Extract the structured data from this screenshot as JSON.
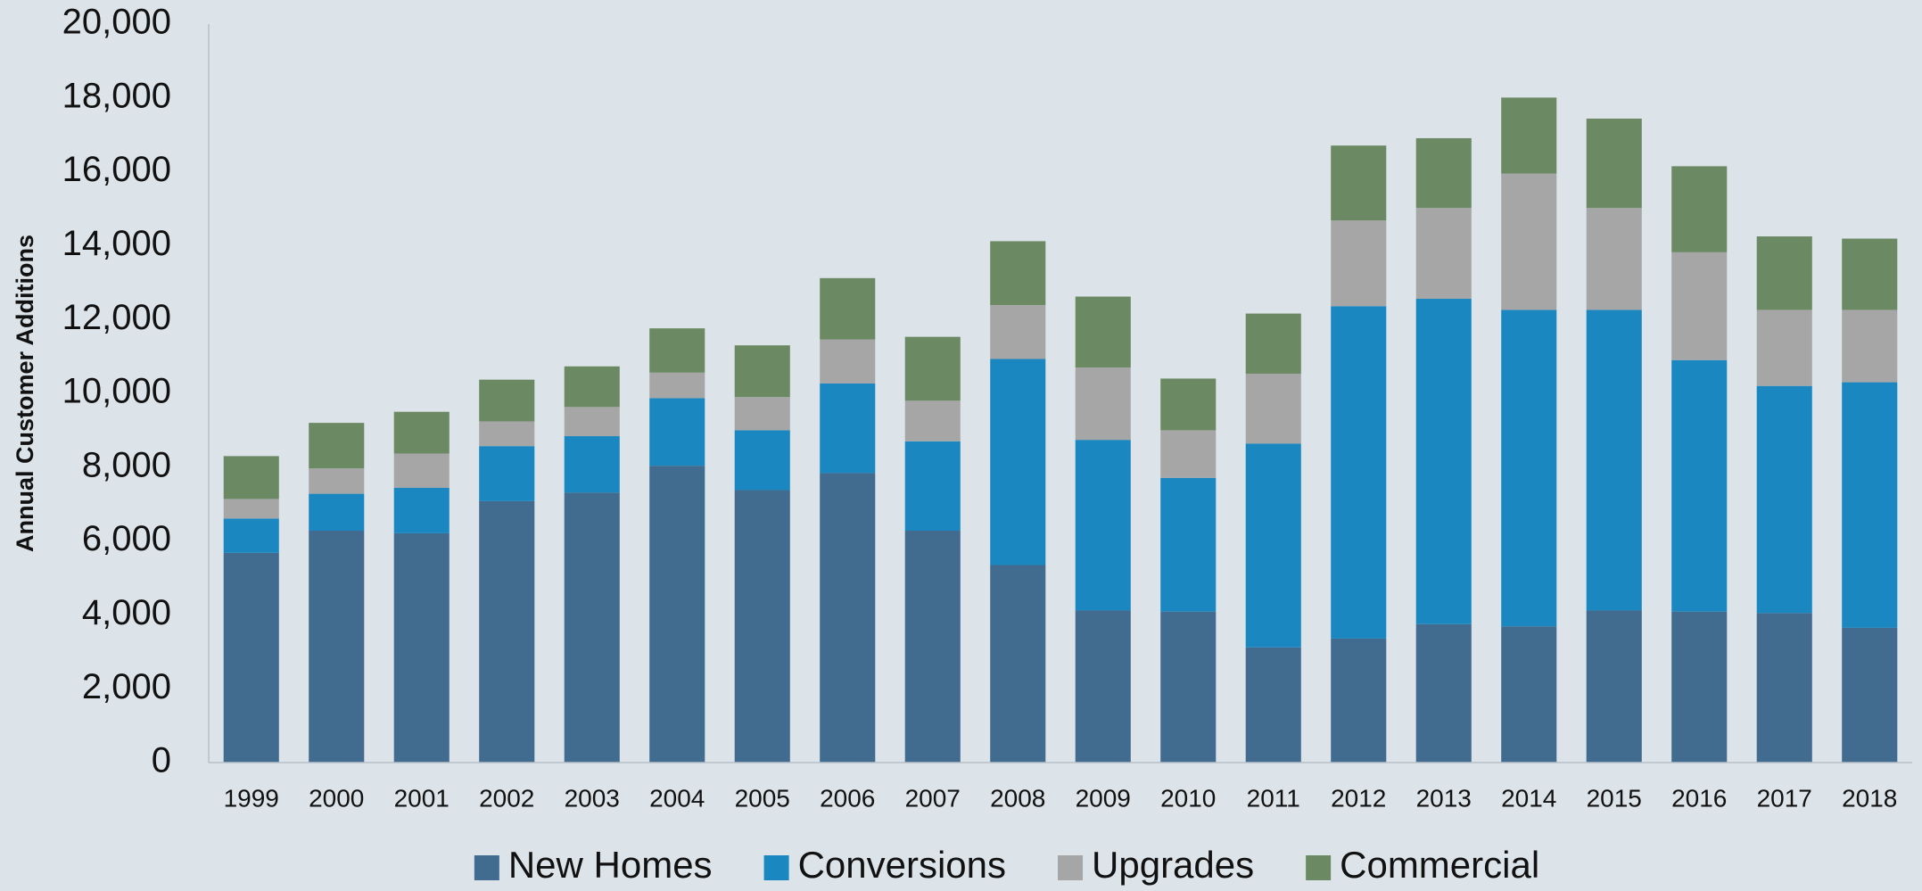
{
  "chart_data": {
    "type": "stacked_bar",
    "y_label": "Annual Customer Additions",
    "categories": [
      "1999",
      "2000",
      "2001",
      "2002",
      "2003",
      "2004",
      "2005",
      "2006",
      "2007",
      "2008",
      "2009",
      "2010",
      "2011",
      "2012",
      "2013",
      "2014",
      "2015",
      "2016",
      "2017",
      "2018"
    ],
    "series": [
      {
        "name": "New Homes",
        "color": "#416b8f",
        "values": [
          5680,
          6280,
          6210,
          7080,
          7310,
          8040,
          7380,
          7840,
          6280,
          5350,
          4120,
          4090,
          3120,
          3360,
          3750,
          3690,
          4120,
          4090,
          4050,
          3650
        ]
      },
      {
        "name": "Conversions",
        "color": "#1a87c0",
        "values": [
          930,
          1000,
          1230,
          1490,
          1530,
          1830,
          1620,
          2430,
          2420,
          5580,
          4620,
          3620,
          5520,
          9000,
          8810,
          8570,
          8140,
          6810,
          6150,
          6650
        ]
      },
      {
        "name": "Upgrades",
        "color": "#a6a6a6",
        "values": [
          530,
          690,
          930,
          670,
          790,
          690,
          900,
          1190,
          1100,
          1460,
          1960,
          1290,
          1890,
          2320,
          2460,
          3690,
          2760,
          2920,
          2060,
          1960
        ]
      },
      {
        "name": "Commercial",
        "color": "#6b8963",
        "values": [
          1160,
          1230,
          1130,
          1130,
          1100,
          1200,
          1400,
          1660,
          1730,
          1730,
          1920,
          1400,
          1630,
          2030,
          1890,
          2060,
          2420,
          2330,
          1990,
          1930
        ]
      }
    ],
    "ylim": [
      0,
      20000
    ],
    "yticks": [
      0,
      {
        "value": 2000,
        "label": "2,000"
      },
      {
        "value": 4000,
        "label": "4,000"
      },
      {
        "value": 6000,
        "label": "6,000"
      },
      {
        "value": 8000,
        "label": "8,000"
      },
      {
        "value": 10000,
        "label": "10,000"
      },
      {
        "value": 12000,
        "label": "12,000"
      },
      {
        "value": 14000,
        "label": "14,000"
      },
      {
        "value": 16000,
        "label": "16,000"
      },
      {
        "value": 18000,
        "label": "18,000"
      },
      {
        "value": 20000,
        "label": "20,000"
      }
    ],
    "legend": "bottom"
  }
}
